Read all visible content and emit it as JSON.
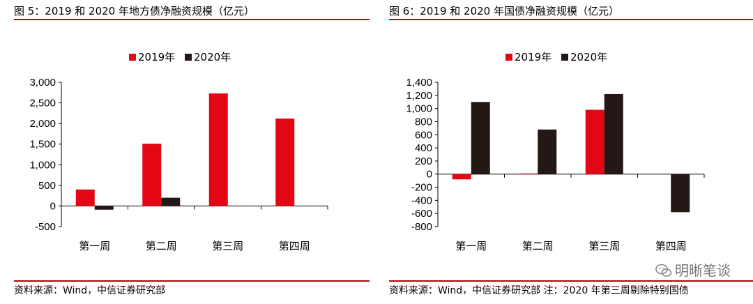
{
  "colors": {
    "accent": "#c00000",
    "series2019": "#e30613",
    "series2020": "#231815"
  },
  "left": {
    "title": "图 5：2019 和 2020 年地方债净融资规模（亿元）",
    "source": "资料来源：Wind，中信证券研究部"
  },
  "right": {
    "title": "图 6：2019 和 2020 年国债净融资规模（亿元）",
    "source": "资料来源：Wind，中信证券研究部 注：2020 年第三周剔除特别国债"
  },
  "watermark": "明晰笔谈",
  "chart_data": [
    {
      "type": "bar",
      "categories": [
        "第一周",
        "第二周",
        "第三周",
        "第四周"
      ],
      "series": [
        {
          "name": "2019年",
          "values": [
            400,
            1510,
            2730,
            2120
          ]
        },
        {
          "name": "2020年",
          "values": [
            -90,
            200,
            null,
            null
          ]
        }
      ],
      "ylim": [
        -500,
        3000
      ],
      "yticks": [
        -500,
        0,
        500,
        1000,
        1500,
        2000,
        2500,
        3000
      ],
      "ytick_labels": [
        "-500",
        "0",
        "500",
        "1,000",
        "1,500",
        "2,000",
        "2,500",
        "3,000"
      ],
      "legend": "top",
      "grid": false
    },
    {
      "type": "bar",
      "categories": [
        "第一周",
        "第二周",
        "第三周",
        "第四周"
      ],
      "series": [
        {
          "name": "2019年",
          "values": [
            -80,
            10,
            980,
            null
          ]
        },
        {
          "name": "2020年",
          "values": [
            1100,
            680,
            1220,
            -580
          ]
        }
      ],
      "ylim": [
        -800,
        1400
      ],
      "yticks": [
        -800,
        -600,
        -400,
        -200,
        0,
        200,
        400,
        600,
        800,
        1000,
        1200,
        1400
      ],
      "ytick_labels": [
        "-800",
        "-600",
        "-400",
        "-200",
        "0",
        "200",
        "400",
        "600",
        "800",
        "1,000",
        "1,200",
        "1,400"
      ],
      "legend": "top",
      "grid": false
    }
  ]
}
